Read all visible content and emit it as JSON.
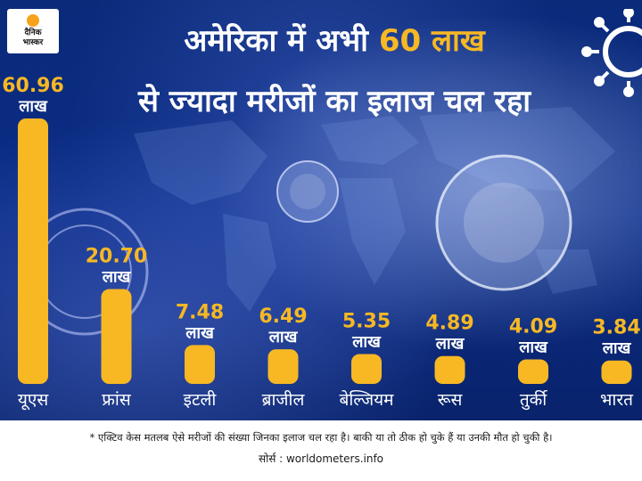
{
  "brand": {
    "line1": "दैनिक",
    "line2": "भास्कर"
  },
  "title": {
    "line1_prefix": "अमेरिका में अभी ",
    "line1_highlight": "60 लाख",
    "line2": "से ज्यादा  मरीजों का इलाज चल रहा"
  },
  "footer": {
    "note": "* एक्टिव केस मतलब ऐसे मरीजों की संख्या जिनका इलाज चल रहा है। बाकी या तो ठीक हो चुके हैं या उनकी मौत हो चुकी है।",
    "source": "सोर्स : worldometers.info"
  },
  "colors": {
    "bar": "#f7b824",
    "background": "#0b2c86",
    "text": "#ffffff"
  },
  "chart_data": {
    "type": "bar",
    "categories": [
      "यूएस",
      "फ्रांस",
      "इटली",
      "ब्राजील",
      "बेल्जियम",
      "रूस",
      "तुर्की",
      "भारत"
    ],
    "values": [
      60.96,
      20.7,
      7.48,
      6.49,
      5.35,
      4.89,
      4.09,
      3.84
    ],
    "value_labels": [
      "60.96",
      "20.70",
      "7.48",
      "6.49",
      "5.35",
      "4.89",
      "4.09",
      "3.84"
    ],
    "unit_label": "लाख",
    "title": "अमेरिका में अभी 60 लाख से ज्यादा  मरीजों का इलाज चल रहा",
    "xlabel": "",
    "ylabel": "",
    "ylim": [
      0,
      60.96
    ],
    "grid": false,
    "legend": "none"
  }
}
